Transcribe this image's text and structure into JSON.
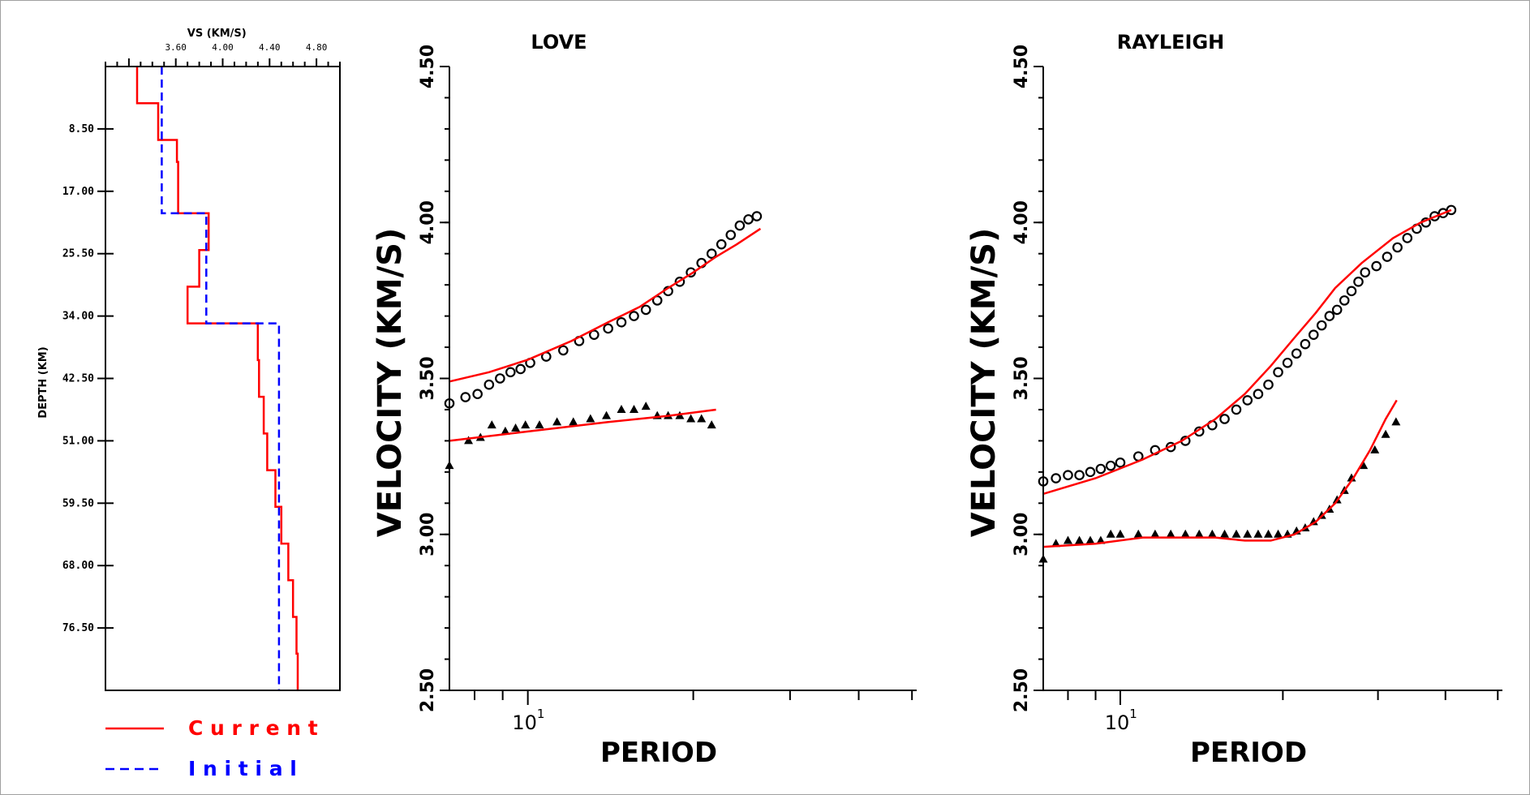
{
  "colors": {
    "current": "#ff0000",
    "initial": "#0000ff",
    "observed": "#000000",
    "axis": "#000000"
  },
  "legend": {
    "current_label": "C u r r e n t",
    "initial_label": "I n i t i a l"
  },
  "chart_data": [
    {
      "id": "vs-profile",
      "type": "line",
      "title": "",
      "xlabel": "VS (KM/S)",
      "ylabel": "DEPTH (KM)",
      "xlim": [
        3.0,
        5.0
      ],
      "ylim": [
        85.0,
        0.0
      ],
      "xticks": [
        "3.60",
        "4.00",
        "4.40",
        "4.80"
      ],
      "xtick_values": [
        3.6,
        4.0,
        4.4,
        4.8
      ],
      "yticks": [
        "8.50",
        "17.00",
        "25.50",
        "34.00",
        "42.50",
        "51.00",
        "59.50",
        "68.00",
        "76.50"
      ],
      "ytick_values": [
        8.5,
        17.0,
        25.5,
        34.0,
        42.5,
        51.0,
        59.5,
        68.0,
        76.5
      ],
      "series": [
        {
          "name": "Current",
          "style": "solid",
          "color_key": "current",
          "points": [
            [
              3.27,
              0
            ],
            [
              3.27,
              5
            ],
            [
              3.45,
              5
            ],
            [
              3.45,
              10
            ],
            [
              3.61,
              10
            ],
            [
              3.61,
              13
            ],
            [
              3.62,
              13
            ],
            [
              3.62,
              20
            ],
            [
              3.88,
              20
            ],
            [
              3.88,
              25
            ],
            [
              3.8,
              25
            ],
            [
              3.8,
              30
            ],
            [
              3.7,
              30
            ],
            [
              3.7,
              35
            ],
            [
              4.3,
              35
            ],
            [
              4.3,
              40
            ],
            [
              4.31,
              40
            ],
            [
              4.31,
              45
            ],
            [
              4.35,
              45
            ],
            [
              4.35,
              50
            ],
            [
              4.38,
              50
            ],
            [
              4.38,
              55
            ],
            [
              4.45,
              55
            ],
            [
              4.45,
              60
            ],
            [
              4.5,
              60
            ],
            [
              4.5,
              65
            ],
            [
              4.56,
              65
            ],
            [
              4.56,
              70
            ],
            [
              4.6,
              70
            ],
            [
              4.6,
              75
            ],
            [
              4.63,
              75
            ],
            [
              4.63,
              80
            ],
            [
              4.64,
              80
            ],
            [
              4.64,
              85
            ]
          ]
        },
        {
          "name": "Initial",
          "style": "dashed",
          "color_key": "initial",
          "points": [
            [
              3.48,
              0
            ],
            [
              3.48,
              20
            ],
            [
              3.86,
              20
            ],
            [
              3.86,
              35
            ],
            [
              4.48,
              35
            ],
            [
              4.48,
              85
            ]
          ]
        }
      ]
    },
    {
      "id": "love",
      "type": "scatter",
      "title": "LOVE",
      "xlabel": "PERIOD",
      "ylabel": "VELOCITY (KM/S)",
      "xscale": "log",
      "xlim": [
        7.2,
        51
      ],
      "ylim": [
        2.5,
        4.5
      ],
      "yticks": [
        "2.50",
        "3.00",
        "3.50",
        "4.00",
        "4.50"
      ],
      "ytick_values": [
        2.5,
        3.0,
        3.5,
        4.0,
        4.5
      ],
      "xtick_values": [
        8,
        9,
        10,
        20,
        30,
        40,
        50
      ],
      "xtick_labels": [
        {
          "value": 10,
          "base": "10",
          "exp": "1"
        }
      ],
      "series": [
        {
          "name": "",
          "kind": "circle",
          "color_key": "observed",
          "points": [
            [
              7.2,
              3.42
            ],
            [
              7.7,
              3.44
            ],
            [
              8.1,
              3.45
            ],
            [
              8.5,
              3.48
            ],
            [
              8.9,
              3.5
            ],
            [
              9.3,
              3.52
            ],
            [
              9.7,
              3.53
            ],
            [
              10.1,
              3.55
            ],
            [
              10.8,
              3.57
            ],
            [
              11.6,
              3.59
            ],
            [
              12.4,
              3.62
            ],
            [
              13.2,
              3.64
            ],
            [
              14.0,
              3.66
            ],
            [
              14.8,
              3.68
            ],
            [
              15.6,
              3.7
            ],
            [
              16.4,
              3.72
            ],
            [
              17.2,
              3.75
            ],
            [
              18.0,
              3.78
            ],
            [
              18.9,
              3.81
            ],
            [
              19.8,
              3.84
            ],
            [
              20.7,
              3.87
            ],
            [
              21.6,
              3.9
            ],
            [
              22.5,
              3.93
            ],
            [
              23.4,
              3.96
            ],
            [
              24.3,
              3.99
            ],
            [
              25.2,
              4.01
            ],
            [
              26.1,
              4.02
            ]
          ]
        },
        {
          "name": "",
          "kind": "triangle",
          "color_key": "observed",
          "points": [
            [
              7.2,
              3.22
            ],
            [
              7.8,
              3.3
            ],
            [
              8.2,
              3.31
            ],
            [
              8.6,
              3.35
            ],
            [
              9.1,
              3.33
            ],
            [
              9.5,
              3.34
            ],
            [
              9.9,
              3.35
            ],
            [
              10.5,
              3.35
            ],
            [
              11.3,
              3.36
            ],
            [
              12.1,
              3.36
            ],
            [
              13.0,
              3.37
            ],
            [
              13.9,
              3.38
            ],
            [
              14.8,
              3.4
            ],
            [
              15.6,
              3.4
            ],
            [
              16.4,
              3.41
            ],
            [
              17.2,
              3.38
            ],
            [
              18.0,
              3.38
            ],
            [
              18.9,
              3.38
            ],
            [
              19.8,
              3.37
            ],
            [
              20.7,
              3.37
            ],
            [
              21.6,
              3.35
            ]
          ]
        },
        {
          "name": "",
          "kind": "line",
          "color_key": "current",
          "points": [
            [
              7.2,
              3.49
            ],
            [
              8.5,
              3.52
            ],
            [
              10,
              3.56
            ],
            [
              12,
              3.62
            ],
            [
              14,
              3.68
            ],
            [
              16,
              3.73
            ],
            [
              18,
              3.79
            ],
            [
              20,
              3.84
            ],
            [
              22,
              3.89
            ],
            [
              24,
              3.93
            ],
            [
              26.5,
              3.98
            ]
          ]
        },
        {
          "name": "",
          "kind": "line",
          "color_key": "current",
          "points": [
            [
              7.2,
              3.3
            ],
            [
              10,
              3.33
            ],
            [
              14,
              3.36
            ],
            [
              18,
              3.38
            ],
            [
              22,
              3.4
            ]
          ]
        }
      ]
    },
    {
      "id": "rayleigh",
      "type": "scatter",
      "title": "RAYLEIGH",
      "xlabel": "PERIOD",
      "ylabel": "VELOCITY (KM/S)",
      "xscale": "log",
      "xlim": [
        7.2,
        51
      ],
      "ylim": [
        2.5,
        4.5
      ],
      "yticks": [
        "2.50",
        "3.00",
        "3.50",
        "4.00",
        "4.50"
      ],
      "ytick_values": [
        2.5,
        3.0,
        3.5,
        4.0,
        4.5
      ],
      "xtick_values": [
        8,
        9,
        10,
        20,
        30,
        40,
        50
      ],
      "xtick_labels": [
        {
          "value": 10,
          "base": "10",
          "exp": "1"
        }
      ],
      "series": [
        {
          "name": "",
          "kind": "circle",
          "color_key": "observed",
          "points": [
            [
              7.2,
              3.17
            ],
            [
              7.6,
              3.18
            ],
            [
              8.0,
              3.19
            ],
            [
              8.4,
              3.19
            ],
            [
              8.8,
              3.2
            ],
            [
              9.2,
              3.21
            ],
            [
              9.6,
              3.22
            ],
            [
              10.0,
              3.23
            ],
            [
              10.8,
              3.25
            ],
            [
              11.6,
              3.27
            ],
            [
              12.4,
              3.28
            ],
            [
              13.2,
              3.3
            ],
            [
              14.0,
              3.33
            ],
            [
              14.8,
              3.35
            ],
            [
              15.6,
              3.37
            ],
            [
              16.4,
              3.4
            ],
            [
              17.2,
              3.43
            ],
            [
              18.0,
              3.45
            ],
            [
              18.8,
              3.48
            ],
            [
              19.6,
              3.52
            ],
            [
              20.4,
              3.55
            ],
            [
              21.2,
              3.58
            ],
            [
              22.0,
              3.61
            ],
            [
              22.8,
              3.64
            ],
            [
              23.6,
              3.67
            ],
            [
              24.4,
              3.7
            ],
            [
              25.2,
              3.72
            ],
            [
              26.0,
              3.75
            ],
            [
              26.8,
              3.78
            ],
            [
              27.6,
              3.81
            ],
            [
              28.4,
              3.84
            ],
            [
              29.8,
              3.86
            ],
            [
              31.2,
              3.89
            ],
            [
              32.6,
              3.92
            ],
            [
              34.0,
              3.95
            ],
            [
              35.4,
              3.98
            ],
            [
              36.8,
              4.0
            ],
            [
              38.2,
              4.02
            ],
            [
              39.6,
              4.03
            ],
            [
              41.0,
              4.04
            ]
          ]
        },
        {
          "name": "",
          "kind": "triangle",
          "color_key": "observed",
          "points": [
            [
              7.2,
              2.92
            ],
            [
              7.6,
              2.97
            ],
            [
              8.0,
              2.98
            ],
            [
              8.4,
              2.98
            ],
            [
              8.8,
              2.98
            ],
            [
              9.2,
              2.98
            ],
            [
              9.6,
              3.0
            ],
            [
              10.0,
              3.0
            ],
            [
              10.8,
              3.0
            ],
            [
              11.6,
              3.0
            ],
            [
              12.4,
              3.0
            ],
            [
              13.2,
              3.0
            ],
            [
              14.0,
              3.0
            ],
            [
              14.8,
              3.0
            ],
            [
              15.6,
              3.0
            ],
            [
              16.4,
              3.0
            ],
            [
              17.2,
              3.0
            ],
            [
              18.0,
              3.0
            ],
            [
              18.8,
              3.0
            ],
            [
              19.6,
              3.0
            ],
            [
              20.4,
              3.0
            ],
            [
              21.2,
              3.01
            ],
            [
              22.0,
              3.02
            ],
            [
              22.8,
              3.04
            ],
            [
              23.6,
              3.06
            ],
            [
              24.4,
              3.08
            ],
            [
              25.2,
              3.11
            ],
            [
              26.0,
              3.14
            ],
            [
              26.8,
              3.18
            ],
            [
              28.2,
              3.22
            ],
            [
              29.6,
              3.27
            ],
            [
              31.0,
              3.32
            ],
            [
              32.4,
              3.36
            ]
          ]
        },
        {
          "name": "",
          "kind": "line",
          "color_key": "current",
          "points": [
            [
              7.2,
              3.13
            ],
            [
              9,
              3.18
            ],
            [
              11,
              3.24
            ],
            [
              13,
              3.3
            ],
            [
              15,
              3.37
            ],
            [
              17,
              3.45
            ],
            [
              19,
              3.54
            ],
            [
              21,
              3.63
            ],
            [
              23,
              3.71
            ],
            [
              25,
              3.79
            ],
            [
              28,
              3.87
            ],
            [
              32,
              3.95
            ],
            [
              36,
              4.0
            ],
            [
              41,
              4.04
            ]
          ]
        },
        {
          "name": "",
          "kind": "line",
          "color_key": "current",
          "points": [
            [
              7.2,
              2.96
            ],
            [
              9,
              2.97
            ],
            [
              11,
              2.99
            ],
            [
              13,
              2.99
            ],
            [
              15,
              2.99
            ],
            [
              17,
              2.98
            ],
            [
              19,
              2.98
            ],
            [
              21,
              3.0
            ],
            [
              23,
              3.04
            ],
            [
              25,
              3.1
            ],
            [
              27,
              3.18
            ],
            [
              29,
              3.27
            ],
            [
              31,
              3.37
            ],
            [
              32.5,
              3.43
            ]
          ]
        }
      ]
    }
  ]
}
